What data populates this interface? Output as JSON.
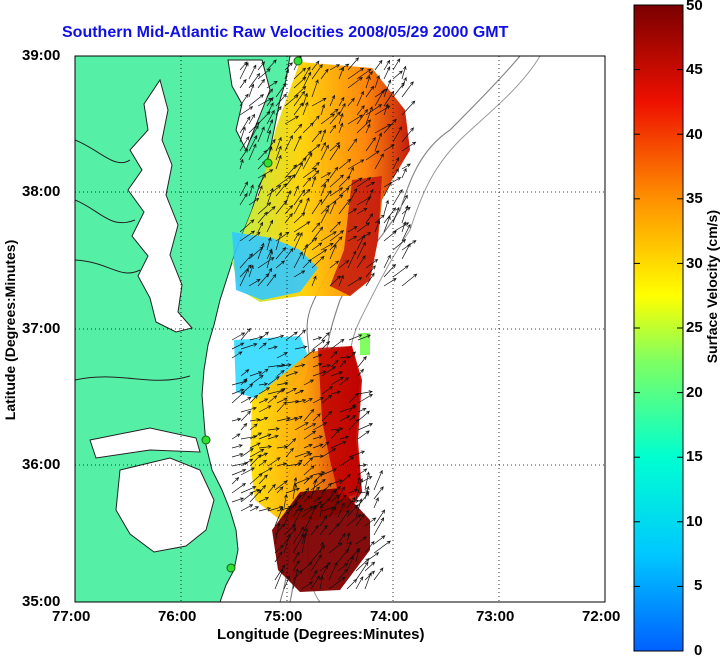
{
  "title": "Southern Mid-Atlantic Raw Velocities 2008/05/29 2000 GMT",
  "axes": {
    "xlabel": "Longitude (Degrees:Minutes)",
    "ylabel": "Latitude (Degrees:Minutes)",
    "x_ticks": [
      "77:00",
      "76:00",
      "75:00",
      "74:00",
      "73:00",
      "72:00"
    ],
    "y_ticks": [
      "39:00",
      "38:00",
      "37:00",
      "36:00",
      "35:00"
    ]
  },
  "colorbar": {
    "label": "Surface Velocity (cm/s)",
    "ticks": [
      "50",
      "45",
      "40",
      "35",
      "30",
      "25",
      "20",
      "15",
      "10",
      "5",
      "0"
    ],
    "min": 0,
    "max": 50,
    "colormap": "jet"
  },
  "colors": {
    "land": "#55f0a6",
    "title": "#1010e6",
    "station": "#33dd33"
  }
}
